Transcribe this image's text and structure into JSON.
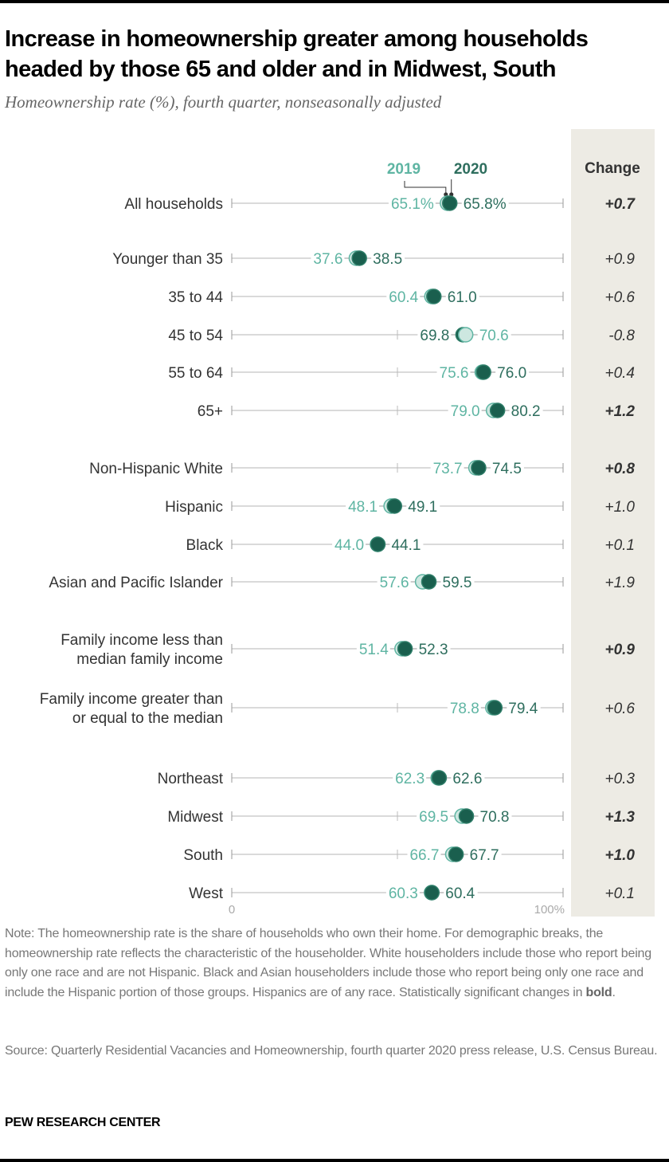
{
  "title": "Increase in homeownership greater among households headed by those 65 and older and in Midwest, South",
  "subtitle": "Homeownership rate (%), fourth quarter, nonseasonally adjusted",
  "note_prefix": "Note: The homeownership rate is the share of households who own their home. For demographic breaks, the homeownership rate reflects the characteristic of the householder. White householders include those who report being only one race and are not Hispanic. Black and Asian householders include those who report being only one race and include the Hispanic portion of those groups. Hispanics are of any race. Statistically significant changes in ",
  "note_bold": "bold",
  "note_suffix": ".",
  "source": "Source: Quarterly Residential Vacancies and Homeownership, fourth quarter 2020 press release, U.S. Census Bureau.",
  "brand": "PEW RESEARCH CENTER",
  "colors": {
    "y2019_text": "#5fb5a3",
    "y2019_fill": "#cde7e0",
    "y2020_text": "#2e6e5e",
    "y2020_fill": "#1a5f4e",
    "axis": "#999999",
    "change_panel": "#edebe4"
  },
  "chart_data": {
    "type": "dot",
    "title": "Increase in homeownership greater among households headed by those 65 and older and in Midwest, South",
    "subtitle": "Homeownership rate (%), fourth quarter, nonseasonally adjusted",
    "xlim": [
      0,
      100
    ],
    "x_tick_labels": [
      "0",
      "100%"
    ],
    "legend": [
      "2019",
      "2020"
    ],
    "legend_placement": "top-center",
    "change_header": "Change",
    "rows": [
      {
        "group": 0,
        "label": [
          "All households"
        ],
        "y2019": 65.1,
        "y2020": 65.8,
        "l2019": "65.1%",
        "l2020": "65.8%",
        "change": "+0.7",
        "significant": true
      },
      {
        "group": 1,
        "label": [
          "Younger than 35"
        ],
        "y2019": 37.6,
        "y2020": 38.5,
        "l2019": "37.6",
        "l2020": "38.5",
        "change": "+0.9",
        "significant": false
      },
      {
        "group": 1,
        "label": [
          "35 to 44"
        ],
        "y2019": 60.4,
        "y2020": 61.0,
        "l2019": "60.4",
        "l2020": "61.0",
        "change": "+0.6",
        "significant": false
      },
      {
        "group": 1,
        "label": [
          "45 to 54"
        ],
        "y2019": 70.6,
        "y2020": 69.8,
        "l2019": "70.6",
        "l2020": "69.8",
        "change": "-0.8",
        "significant": false
      },
      {
        "group": 1,
        "label": [
          "55 to 64"
        ],
        "y2019": 75.6,
        "y2020": 76.0,
        "l2019": "75.6",
        "l2020": "76.0",
        "change": "+0.4",
        "significant": false
      },
      {
        "group": 1,
        "label": [
          "65+"
        ],
        "y2019": 79.0,
        "y2020": 80.2,
        "l2019": "79.0",
        "l2020": "80.2",
        "change": "+1.2",
        "significant": true
      },
      {
        "group": 2,
        "label": [
          "Non-Hispanic White"
        ],
        "y2019": 73.7,
        "y2020": 74.5,
        "l2019": "73.7",
        "l2020": "74.5",
        "change": "+0.8",
        "significant": true
      },
      {
        "group": 2,
        "label": [
          "Hispanic"
        ],
        "y2019": 48.1,
        "y2020": 49.1,
        "l2019": "48.1",
        "l2020": "49.1",
        "change": "+1.0",
        "significant": false
      },
      {
        "group": 2,
        "label": [
          "Black"
        ],
        "y2019": 44.0,
        "y2020": 44.1,
        "l2019": "44.0",
        "l2020": "44.1",
        "change": "+0.1",
        "significant": false
      },
      {
        "group": 2,
        "label": [
          "Asian and Pacific Islander"
        ],
        "y2019": 57.6,
        "y2020": 59.5,
        "l2019": "57.6",
        "l2020": "59.5",
        "change": "+1.9",
        "significant": false
      },
      {
        "group": 3,
        "label": [
          "Family income less than",
          "median family income"
        ],
        "y2019": 51.4,
        "y2020": 52.3,
        "l2019": "51.4",
        "l2020": "52.3",
        "change": "+0.9",
        "significant": true
      },
      {
        "group": 3,
        "label": [
          "Family income greater than",
          "or equal to the median"
        ],
        "y2019": 78.8,
        "y2020": 79.4,
        "l2019": "78.8",
        "l2020": "79.4",
        "change": "+0.6",
        "significant": false
      },
      {
        "group": 4,
        "label": [
          "Northeast"
        ],
        "y2019": 62.3,
        "y2020": 62.6,
        "l2019": "62.3",
        "l2020": "62.6",
        "change": "+0.3",
        "significant": false
      },
      {
        "group": 4,
        "label": [
          "Midwest"
        ],
        "y2019": 69.5,
        "y2020": 70.8,
        "l2019": "69.5",
        "l2020": "70.8",
        "change": "+1.3",
        "significant": true
      },
      {
        "group": 4,
        "label": [
          "South"
        ],
        "y2019": 66.7,
        "y2020": 67.7,
        "l2019": "66.7",
        "l2020": "67.7",
        "change": "+1.0",
        "significant": true
      },
      {
        "group": 4,
        "label": [
          "West"
        ],
        "y2019": 60.3,
        "y2020": 60.4,
        "l2019": "60.3",
        "l2020": "60.4",
        "change": "+0.1",
        "significant": false
      }
    ]
  }
}
